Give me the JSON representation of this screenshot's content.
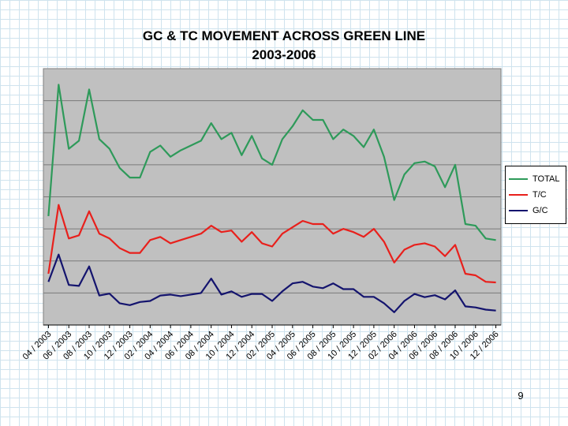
{
  "slide": {
    "title_line1": "GC & TC MOVEMENT ACROSS GREEN LINE",
    "title_line2": "2003-2006",
    "page_number": "9"
  },
  "chart_data": {
    "type": "line",
    "title": "GC & TC MOVEMENT ACROSS GREEN LINE 2003-2006",
    "xlabel": "",
    "ylabel": "",
    "ylim": [
      0,
      8
    ],
    "grid": true,
    "legend_position": "right",
    "tick_labels": [
      "04 / 2003",
      "06 / 2003",
      "08 / 2003",
      "10 / 2003",
      "12 / 2003",
      "02 / 2004",
      "04 / 2004",
      "06 / 2004",
      "08 / 2004",
      "10 / 2004",
      "12 / 2004",
      "02 / 2005",
      "04 / 2005",
      "06 / 2005",
      "08 / 2005",
      "10 / 2005",
      "12 / 2005",
      "02 / 2006",
      "04 / 2006",
      "06 / 2006",
      "08 / 2006",
      "10 / 2006",
      "12 / 2006"
    ],
    "x": [
      "04 / 2003",
      "05 / 2003",
      "06 / 2003",
      "07 / 2003",
      "08 / 2003",
      "09 / 2003",
      "10 / 2003",
      "11 / 2003",
      "12 / 2003",
      "01 / 2004",
      "02 / 2004",
      "03 / 2004",
      "04 / 2004",
      "05 / 2004",
      "06 / 2004",
      "07 / 2004",
      "08 / 2004",
      "09 / 2004",
      "10 / 2004",
      "11 / 2004",
      "12 / 2004",
      "01 / 2005",
      "02 / 2005",
      "03 / 2005",
      "04 / 2005",
      "05 / 2005",
      "06 / 2005",
      "07 / 2005",
      "08 / 2005",
      "09 / 2005",
      "10 / 2005",
      "11 / 2005",
      "12 / 2005",
      "01 / 2006",
      "02 / 2006",
      "03 / 2006",
      "04 / 2006",
      "05 / 2006",
      "06 / 2006",
      "07 / 2006",
      "08 / 2006",
      "09 / 2006",
      "10 / 2006",
      "11 / 2006",
      "12 / 2006"
    ],
    "series": [
      {
        "name": "TOTAL",
        "color": "#2e9a5a",
        "values": [
          3.4,
          7.5,
          5.5,
          5.75,
          7.35,
          5.8,
          5.5,
          4.9,
          4.6,
          4.6,
          5.4,
          5.6,
          5.25,
          5.45,
          5.6,
          5.75,
          6.3,
          5.8,
          6.0,
          5.3,
          5.9,
          5.2,
          5.0,
          5.8,
          6.2,
          6.7,
          6.4,
          6.4,
          5.8,
          6.1,
          5.9,
          5.55,
          6.1,
          5.25,
          3.9,
          4.7,
          5.05,
          5.1,
          4.95,
          4.3,
          5.0,
          3.15,
          3.1,
          2.7,
          2.65
        ]
      },
      {
        "name": "T/C",
        "color": "#e8201c",
        "values": [
          1.6,
          3.75,
          2.7,
          2.8,
          3.55,
          2.85,
          2.7,
          2.4,
          2.25,
          2.25,
          2.65,
          2.75,
          2.55,
          2.65,
          2.75,
          2.85,
          3.1,
          2.9,
          2.95,
          2.6,
          2.9,
          2.55,
          2.45,
          2.85,
          3.05,
          3.25,
          3.15,
          3.15,
          2.85,
          3.0,
          2.9,
          2.75,
          3.0,
          2.6,
          1.95,
          2.35,
          2.5,
          2.55,
          2.45,
          2.15,
          2.5,
          1.6,
          1.55,
          1.35,
          1.33
        ]
      },
      {
        "name": "G/C",
        "color": "#14146e",
        "values": [
          1.35,
          2.2,
          1.25,
          1.22,
          1.83,
          0.92,
          0.98,
          0.68,
          0.62,
          0.72,
          0.75,
          0.92,
          0.95,
          0.9,
          0.95,
          1.0,
          1.45,
          0.95,
          1.05,
          0.88,
          0.97,
          0.97,
          0.75,
          1.05,
          1.3,
          1.35,
          1.2,
          1.15,
          1.3,
          1.12,
          1.12,
          0.88,
          0.88,
          0.68,
          0.4,
          0.75,
          0.97,
          0.87,
          0.93,
          0.8,
          1.08,
          0.58,
          0.55,
          0.48,
          0.45
        ]
      }
    ]
  }
}
